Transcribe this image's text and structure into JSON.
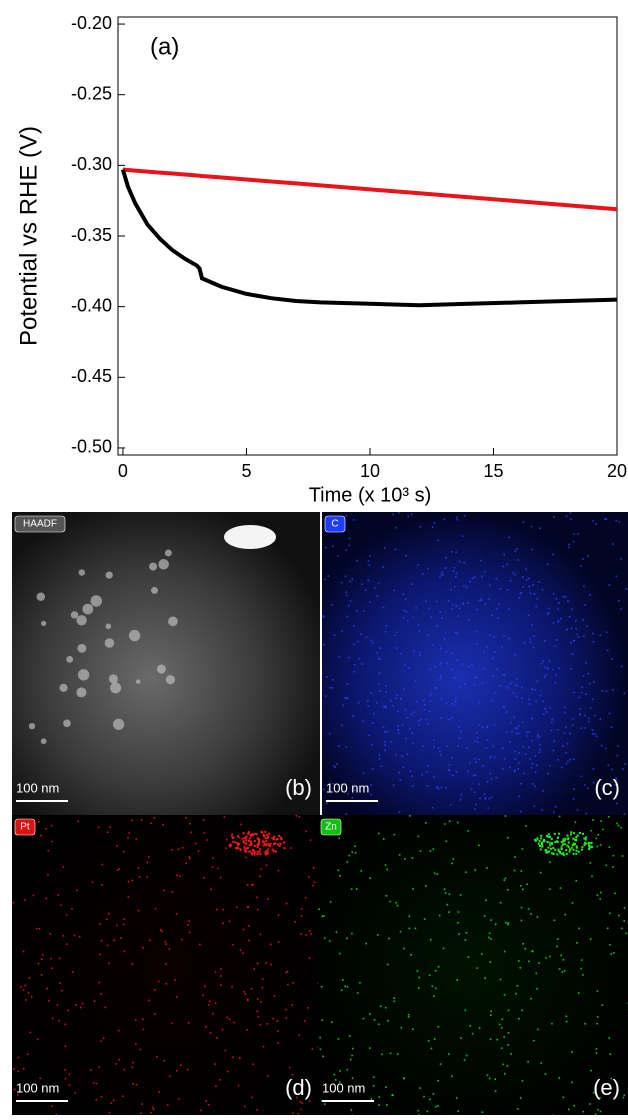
{
  "chart_data": {
    "type": "line",
    "panel_label": "(a)",
    "x_label": "Time (x 10³ s)",
    "y_label": "Potential vs RHE (V)",
    "xlim": [
      -0.2,
      20
    ],
    "ylim": [
      -0.505,
      -0.195
    ],
    "xticks": [
      0,
      5,
      10,
      15,
      20
    ],
    "yticks": [
      {
        "value": -0.2,
        "label": "-0.20"
      },
      -0.25,
      {
        "value": -0.3,
        "label": "-0.30"
      },
      -0.35,
      {
        "value": -0.4,
        "label": "-0.40"
      },
      -0.45,
      {
        "value": -0.5,
        "label": "-0.50"
      }
    ],
    "x": [
      0,
      0.2,
      0.5,
      1,
      1.5,
      2,
      2.5,
      3,
      3.1,
      3.2,
      4,
      5,
      6,
      7,
      8,
      10,
      12,
      14,
      16,
      18,
      20
    ],
    "series": [
      {
        "color": "#e8141a",
        "values": [
          -0.303,
          -0.3033,
          -0.3037,
          -0.3044,
          -0.3051,
          -0.3058,
          -0.3065,
          -0.3072,
          -0.3073,
          -0.3075,
          -0.3086,
          -0.31,
          -0.3114,
          -0.3128,
          -0.3142,
          -0.317,
          -0.3198,
          -0.3226,
          -0.3254,
          -0.3282,
          -0.331
        ]
      },
      {
        "color": "#000000",
        "values": [
          -0.303,
          -0.315,
          -0.327,
          -0.342,
          -0.352,
          -0.36,
          -0.366,
          -0.371,
          -0.373,
          -0.38,
          -0.386,
          -0.391,
          -0.394,
          -0.396,
          -0.397,
          -0.398,
          -0.399,
          -0.398,
          -0.397,
          -0.396,
          -0.395
        ]
      }
    ]
  },
  "panels": [
    {
      "tag": "HAADF",
      "label": "(b)",
      "scale": "100 nm"
    },
    {
      "tag": "C",
      "label": "(c)",
      "scale": "100 nm"
    },
    {
      "tag": "Pt",
      "label": "(d)",
      "scale": "100 nm"
    },
    {
      "tag": "Zn",
      "label": "(e)",
      "scale": "100 nm"
    }
  ]
}
